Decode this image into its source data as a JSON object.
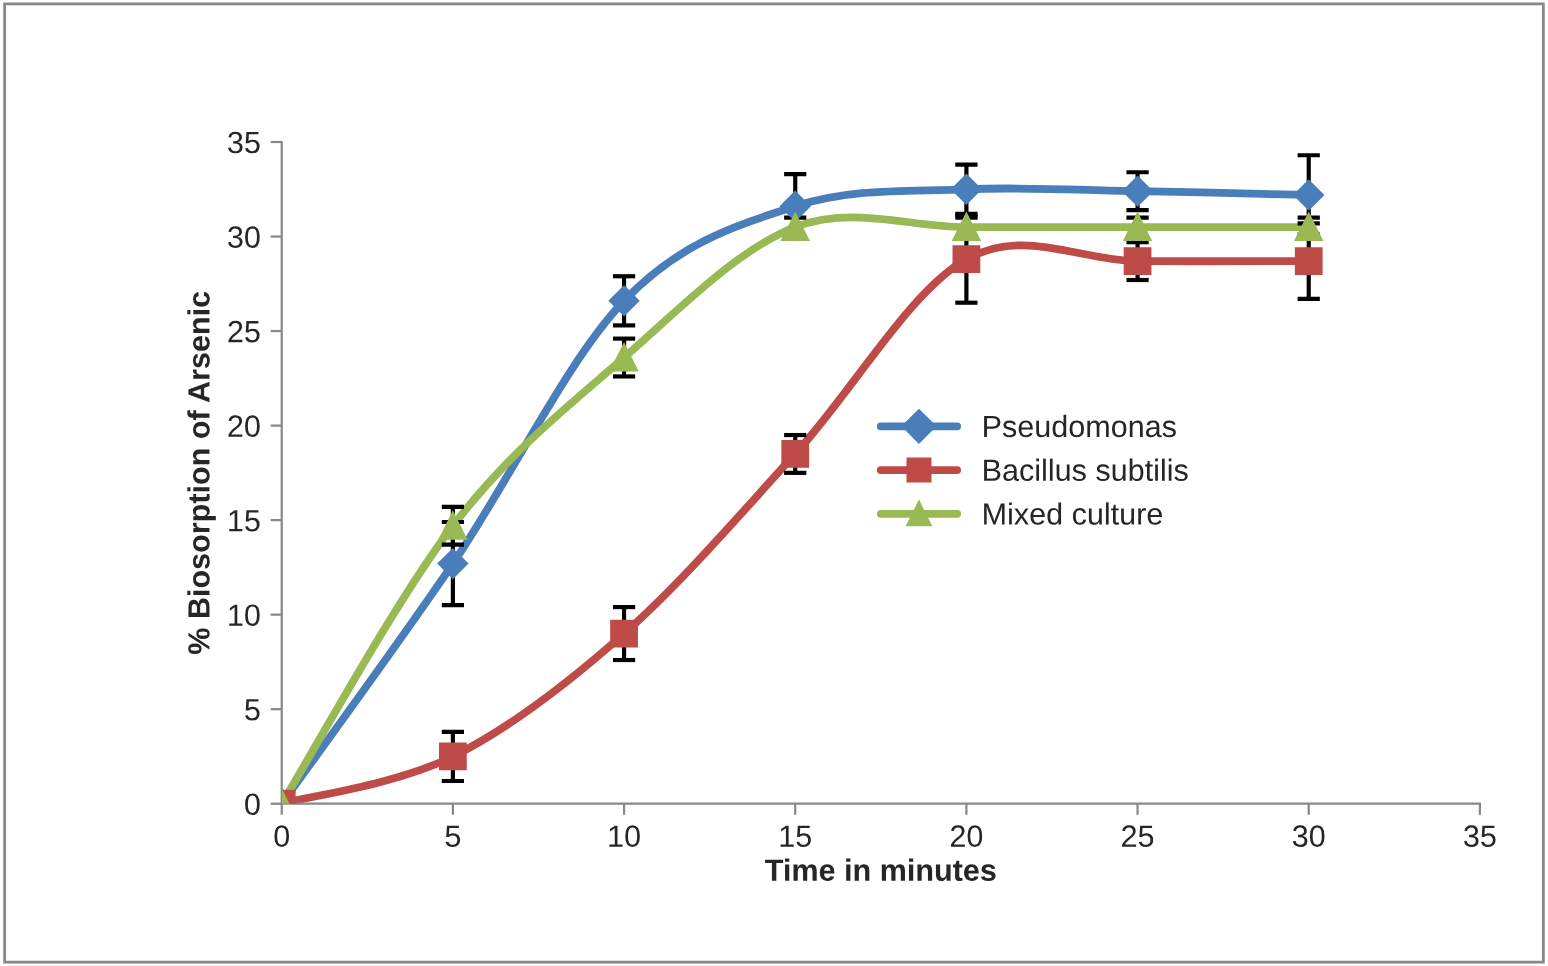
{
  "chart_data": {
    "type": "line",
    "xlabel": "Time in minutes",
    "ylabel": "% Biosorption of Arsenic",
    "x": [
      0,
      5,
      10,
      15,
      20,
      25,
      30
    ],
    "series": [
      {
        "name": "Pseudomonas",
        "color": "#4a7ebb",
        "marker": "diamond",
        "values": [
          0,
          12.7,
          26.6,
          31.6,
          32.5,
          32.4,
          32.2
        ],
        "errors": [
          null,
          2.2,
          1.3,
          1.7,
          1.3,
          1.0,
          2.1
        ]
      },
      {
        "name": "Bacillus subtilis",
        "color": "#be4b48",
        "marker": "square",
        "values": [
          0,
          2.5,
          9.0,
          18.5,
          28.8,
          28.7,
          28.7
        ],
        "errors": [
          null,
          1.3,
          1.4,
          1.0,
          2.3,
          1.0,
          2.0
        ]
      },
      {
        "name": "Mixed culture",
        "color": "#98b954",
        "marker": "triangle",
        "values": [
          0,
          14.7,
          23.6,
          30.5,
          30.5,
          30.5,
          30.5
        ],
        "errors": [
          null,
          1.0,
          1.0,
          0.5,
          0.5,
          0.5,
          0.5
        ]
      }
    ],
    "xlim": [
      0,
      35
    ],
    "xticks": [
      0,
      5,
      10,
      15,
      20,
      25,
      30,
      35
    ],
    "ylim": [
      0,
      35
    ],
    "yticks": [
      0,
      5,
      10,
      15,
      20,
      25,
      30,
      35
    ],
    "grid": false,
    "legend": "right",
    "line_style": "solid"
  }
}
